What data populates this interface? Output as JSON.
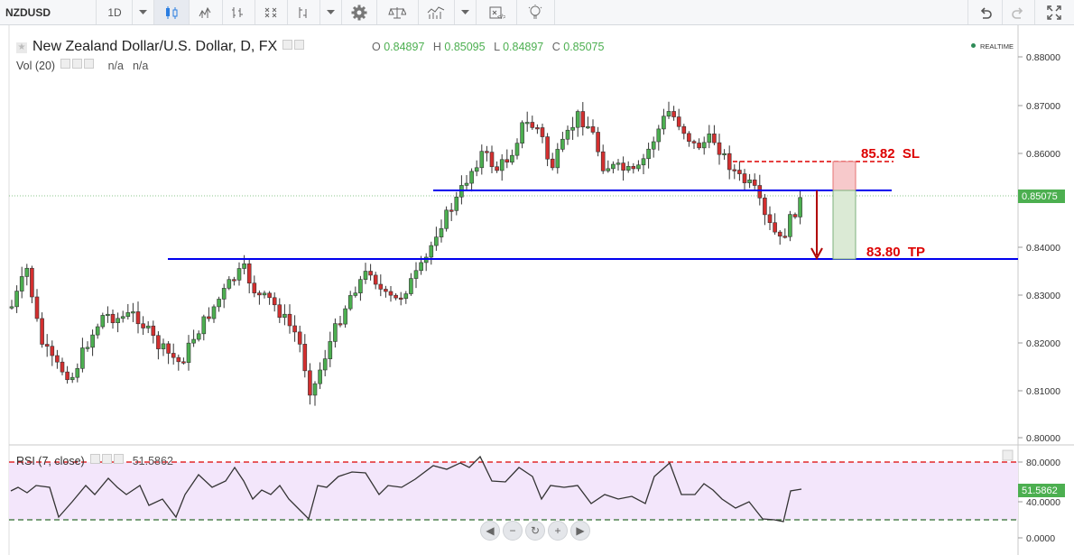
{
  "toolbar": {
    "symbol": "NZDUSD",
    "interval": "1D",
    "icons": [
      "chevron-down-icon",
      "candles-icon",
      "bars-icon",
      "hollow-candles-icon",
      "heikin-ashi-icon",
      "ohlc-icon",
      "chevron-down-icon",
      "gear-icon",
      "compare-icon",
      "indicators-icon",
      "chevron-down-icon",
      "templates-icon",
      "alert-icon",
      "undo-icon",
      "redo-icon",
      "fullscreen-icon"
    ]
  },
  "legend": {
    "title": "New Zealand Dollar/U.S. Dollar, D, FX",
    "o_label": "O",
    "o": "0.84897",
    "h_label": "H",
    "h": "0.85095",
    "l_label": "L",
    "l": "0.84897",
    "c_label": "C",
    "c": "0.85075",
    "vol_label": "Vol (20)",
    "vol_v1": "n/a",
    "vol_v2": "n/a",
    "realtime": "REALTIME"
  },
  "price_axis": {
    "ticks": [
      "0.88000",
      "0.87000",
      "0.86000",
      "0.84000",
      "0.83000",
      "0.82000",
      "0.81000",
      "0.80000"
    ],
    "last_price": "0.85075"
  },
  "annotations": {
    "sl": "85.82  SL",
    "tp": "83.80  TP"
  },
  "rsi": {
    "label": "RSI (7, close)",
    "value": "51.5862",
    "ticks": [
      "80.0000",
      "40.0000",
      "0.0000"
    ],
    "last_value": "51.5862"
  },
  "colors": {
    "up": "#4caf50",
    "down": "#d32f2f",
    "level_line": "#0000ee",
    "sl_color": "#dd0000",
    "rsi_band": "#f3e6fb"
  },
  "chart_data": {
    "type": "candlestick",
    "timeframe": "D",
    "ylim": [
      0.8,
      0.882
    ],
    "horizontal_levels": [
      0.851,
      0.838
    ],
    "stop_loss": 0.8582,
    "take_profit": 0.838,
    "last": {
      "open": 0.84897,
      "high": 0.85095,
      "low": 0.84897,
      "close": 0.85075
    },
    "rsi": {
      "period": 7,
      "source": "close",
      "last": 51.5862,
      "upper": 80,
      "lower": 20
    }
  }
}
